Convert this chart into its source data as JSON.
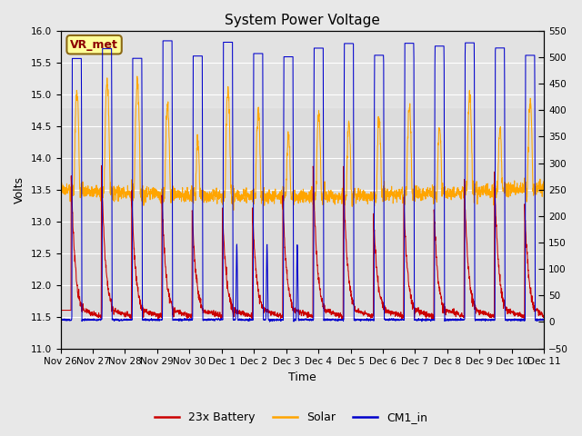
{
  "title": "System Power Voltage",
  "xlabel": "Time",
  "ylabel": "Volts",
  "ylim_left": [
    11.0,
    16.0
  ],
  "ylim_right": [
    -50,
    550
  ],
  "bg_color": "#e8e8e8",
  "plot_bg_color": "#dcdcdc",
  "grid_color": "#ffffff",
  "annotation_text": "VR_met",
  "annotation_box_facecolor": "#ffff99",
  "annotation_box_edgecolor": "#8b6914",
  "annotation_text_color": "#8b0000",
  "x_tick_labels": [
    "Nov 26",
    "Nov 27",
    "Nov 28",
    "Nov 29",
    "Nov 30",
    "Dec 1",
    "Dec 2",
    "Dec 3",
    "Dec 4",
    "Dec 5",
    "Dec 6",
    "Dec 7",
    "Dec 8",
    "Dec 9",
    "Dec 10",
    "Dec 11"
  ],
  "legend_labels": [
    "23x Battery",
    "Solar",
    "CM1_in"
  ],
  "legend_colors": [
    "#cc0000",
    "#ffa500",
    "#0000cc"
  ],
  "title_fontsize": 11,
  "axis_fontsize": 9,
  "tick_fontsize": 7.5,
  "legend_fontsize": 9
}
